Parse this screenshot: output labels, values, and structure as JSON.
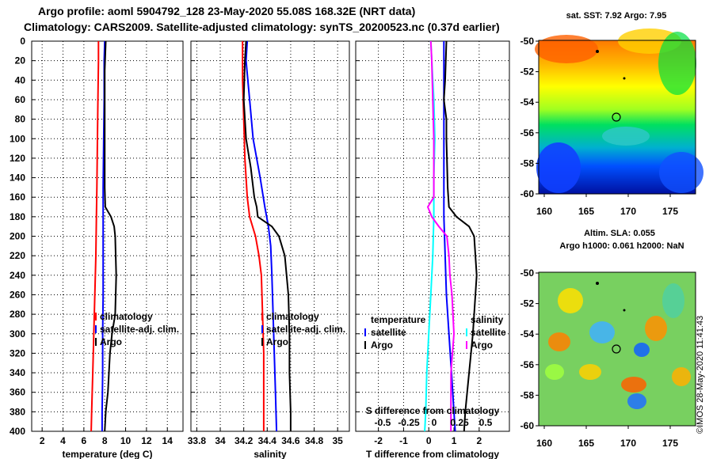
{
  "header": {
    "line1": "Argo profile: aoml 5904792_128 23-May-2020 55.08S 168.32E (NRT data)",
    "line2": "Climatology: CARS2009. Satellite-adjusted climatology: synTS_20200523.nc (0.37d earlier)"
  },
  "colors": {
    "climatology": "#ff0000",
    "satellite": "#0000ff",
    "argo": "#000000",
    "magenta": "#ff00ff",
    "cyan": "#00ffff"
  },
  "depth_ticks": [
    "0",
    "20",
    "40",
    "60",
    "80",
    "100",
    "120",
    "140",
    "160",
    "180",
    "200",
    "220",
    "240",
    "260",
    "280",
    "300",
    "320",
    "340",
    "360",
    "380",
    "400"
  ],
  "chart_data": [
    {
      "type": "line",
      "id": "temperature",
      "xlabel": "temperature (deg C)",
      "xlim": [
        1,
        15.5
      ],
      "ylim": [
        400,
        0
      ],
      "xticks": [
        "2",
        "4",
        "6",
        "8",
        "10",
        "12",
        "14"
      ],
      "xtick_values": [
        2,
        4,
        6,
        8,
        10,
        12,
        14
      ],
      "legend": [
        "climatology",
        "satellite-adj. clim.",
        "Argo"
      ],
      "series": [
        {
          "name": "climatology",
          "color": "#ff0000",
          "depth": [
            0,
            20,
            60,
            100,
            150,
            180,
            220,
            260,
            300,
            340,
            380,
            400
          ],
          "values": [
            7.4,
            7.4,
            7.35,
            7.3,
            7.25,
            7.2,
            7.15,
            7.05,
            6.95,
            6.85,
            6.75,
            6.7
          ]
        },
        {
          "name": "satellite-adj. clim.",
          "color": "#0000ff",
          "depth": [
            0,
            20,
            60,
            100,
            150,
            180,
            220,
            260,
            300,
            340,
            380,
            400
          ],
          "values": [
            8.0,
            7.95,
            7.95,
            7.9,
            7.85,
            7.85,
            7.85,
            7.85,
            7.8,
            7.8,
            7.75,
            7.75
          ]
        },
        {
          "name": "Argo",
          "color": "#000000",
          "depth": [
            0,
            30,
            60,
            100,
            150,
            170,
            180,
            190,
            200,
            240,
            280,
            300,
            320,
            360,
            380,
            400
          ],
          "values": [
            8.1,
            8.0,
            8.0,
            8.0,
            8.0,
            8.05,
            8.6,
            8.9,
            9.0,
            9.1,
            9.0,
            8.7,
            8.5,
            8.3,
            8.1,
            8.0
          ]
        }
      ]
    },
    {
      "type": "line",
      "id": "salinity",
      "xlabel": "salinity",
      "xlim": [
        33.75,
        35.1
      ],
      "ylim": [
        400,
        0
      ],
      "xticks": [
        "33.8",
        "34",
        "34.2",
        "34.4",
        "34.6",
        "34.8",
        "35"
      ],
      "xtick_values": [
        33.8,
        34.0,
        34.2,
        34.4,
        34.6,
        34.8,
        35.0
      ],
      "legend": [
        "climatology",
        "satellite-adj. clim.",
        "Argo"
      ],
      "series": [
        {
          "name": "climatology",
          "color": "#ff0000",
          "depth": [
            0,
            10,
            40,
            80,
            120,
            160,
            180,
            200,
            220,
            240,
            280,
            320,
            360,
            400
          ],
          "values": [
            34.19,
            34.19,
            34.19,
            34.2,
            34.21,
            34.23,
            34.25,
            34.3,
            34.33,
            34.35,
            34.36,
            34.37,
            34.37,
            34.37
          ]
        },
        {
          "name": "satellite-adj. clim.",
          "color": "#0000ff",
          "depth": [
            0,
            20,
            60,
            100,
            140,
            170,
            190,
            210,
            240,
            280,
            320,
            360,
            400
          ],
          "values": [
            34.23,
            34.22,
            34.25,
            34.28,
            34.34,
            34.38,
            34.41,
            34.43,
            34.44,
            34.45,
            34.46,
            34.47,
            34.48
          ]
        },
        {
          "name": "Argo",
          "color": "#000000",
          "depth": [
            0,
            20,
            60,
            100,
            130,
            160,
            170,
            180,
            190,
            200,
            220,
            260,
            300,
            340,
            380,
            400
          ],
          "values": [
            34.22,
            34.21,
            34.2,
            34.22,
            34.26,
            34.29,
            34.31,
            34.32,
            34.44,
            34.5,
            34.55,
            34.58,
            34.59,
            34.59,
            34.6,
            34.6
          ]
        }
      ]
    },
    {
      "type": "line",
      "id": "difference",
      "xlabel": "T difference from climatology",
      "xlabel2": "S difference from climatology",
      "xlim": [
        -2.9,
        3.2
      ],
      "ylim": [
        400,
        0
      ],
      "xticks": [
        "-2",
        "-1",
        "0",
        "1",
        "2"
      ],
      "xtick_values": [
        -2,
        -1,
        0,
        1,
        2
      ],
      "xticks2": [
        "-0.5",
        "-0.25",
        "0",
        "0.25",
        "0.5"
      ],
      "legend_left_title": "temperature",
      "legend_right_title": "salinity",
      "legend": [
        "satellite",
        "Argo"
      ],
      "legend_right": [
        "satellite",
        "Argo"
      ],
      "series": [
        {
          "name": "temperature satellite",
          "color": "#0000ff",
          "depth": [
            0,
            20,
            60,
            100,
            140,
            180,
            220,
            260,
            300,
            340,
            380,
            400
          ],
          "values": [
            0.6,
            0.6,
            0.6,
            0.6,
            0.6,
            0.6,
            0.65,
            0.7,
            0.8,
            0.9,
            1.0,
            1.05
          ]
        },
        {
          "name": "temperature Argo",
          "color": "#000000",
          "depth": [
            0,
            40,
            60,
            80,
            100,
            150,
            170,
            180,
            190,
            200,
            240,
            300,
            340,
            380,
            400
          ],
          "values": [
            0.7,
            0.65,
            0.6,
            0.7,
            0.7,
            0.75,
            0.8,
            1.1,
            1.6,
            1.8,
            1.9,
            1.75,
            1.6,
            1.45,
            1.4
          ]
        },
        {
          "name": "salinity satellite",
          "color": "#00ffff",
          "depth": [
            0,
            20,
            60,
            100,
            140,
            180,
            220,
            260,
            300,
            340,
            380,
            400
          ],
          "values": [
            0.02,
            0.03,
            0.05,
            0.06,
            0.05,
            0.05,
            0.04,
            0.02,
            0.0,
            -0.02,
            -0.03,
            -0.04
          ]
        },
        {
          "name": "salinity Argo",
          "color": "#ff00ff",
          "depth": [
            0,
            20,
            60,
            100,
            140,
            160,
            170,
            180,
            190,
            200,
            220,
            240,
            260,
            300,
            340,
            380,
            400
          ],
          "values": [
            0.02,
            0.03,
            0.04,
            0.05,
            0.05,
            0.05,
            -0.01,
            0.03,
            0.1,
            0.18,
            0.2,
            0.21,
            0.23,
            0.25,
            0.22,
            0.22,
            0.22
          ]
        }
      ]
    }
  ],
  "maps": [
    {
      "title": "sat. SST: 7.92 Argo: 7.95",
      "xticks": [
        "160",
        "165",
        "170",
        "175"
      ],
      "yticks": [
        "-50",
        "-52",
        "-54",
        "-56",
        "-58",
        "-60"
      ]
    },
    {
      "title": "Altim. SLA: 0.055",
      "subtitle": "Argo h1000: 0.061 h2000: NaN",
      "xticks": [
        "160",
        "165",
        "170",
        "175"
      ],
      "yticks": [
        "-50",
        "-52",
        "-54",
        "-56",
        "-58",
        "-60"
      ]
    }
  ],
  "footer": {
    "stamp": "©IMOS 28-May-2020 11:41:43"
  }
}
